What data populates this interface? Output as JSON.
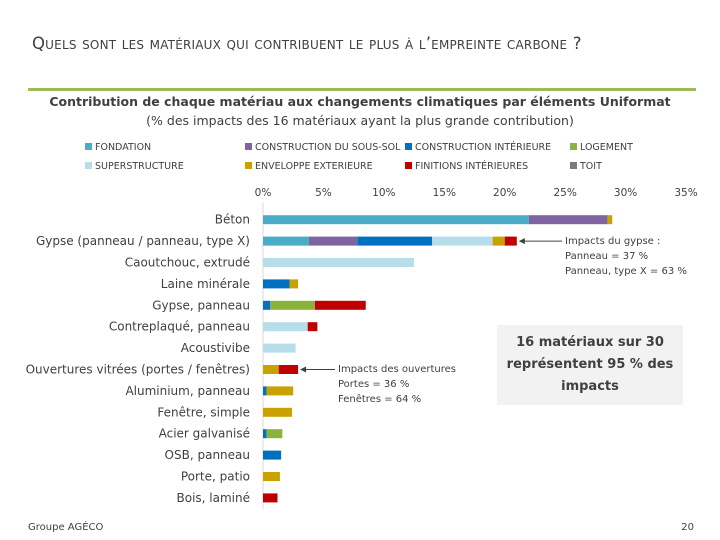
{
  "slide": {
    "title": "Quels sont les matériaux qui contribuent le plus à l’empreinte carbone ?",
    "footer_left": "Groupe AGÉCO",
    "page_number": "20"
  },
  "annotations": {
    "gypse_lines": [
      "Impacts du gypse :",
      "Panneau = 37 %",
      "Panneau, type X = 63 %"
    ],
    "ouvertures_lines": [
      "Impacts des ouvertures",
      "Portes = 36 %",
      "Fenêtres = 64 %"
    ],
    "callout": "16 matériaux sur 30 représentent 95 % des impacts"
  },
  "chart_data": {
    "type": "bar",
    "orientation": "horizontal",
    "stacked": true,
    "title": "Contribution de chaque matériau aux changements climatiques par éléments Uniformat",
    "subtitle": "(% des impacts des 16 matériaux ayant la plus grande contribution)",
    "xlim": [
      0,
      35
    ],
    "xticks": [
      "0%",
      "5%",
      "10%",
      "15%",
      "20%",
      "25%",
      "30%",
      "35%"
    ],
    "xtick_values": [
      0,
      5,
      10,
      15,
      20,
      25,
      30,
      35
    ],
    "legend_position": "top",
    "categories": [
      "Béton",
      "Gypse (panneau / panneau, type X)",
      "Caoutchouc, extrudé",
      "Laine minérale",
      "Gypse, panneau",
      "Contreplaqué, panneau",
      "Acoustivibe",
      "Ouvertures vitrées (portes / fenêtres)",
      "Aluminium, panneau",
      "Fenêtre, simple",
      "Acier galvanisé",
      "OSB, panneau",
      "Porte, patio",
      "Bois, laminé"
    ],
    "series": [
      {
        "name": "FONDATION",
        "color": "#4bacc6",
        "values": [
          22.0,
          3.8,
          0,
          0,
          0,
          0,
          0,
          0,
          0,
          0,
          0,
          0,
          0,
          0
        ]
      },
      {
        "name": "CONSTRUCTION DU SOUS-SOL",
        "color": "#8064a2",
        "values": [
          6.5,
          4.0,
          0,
          0,
          0,
          0,
          0,
          0,
          0,
          0,
          0,
          0,
          0,
          0
        ]
      },
      {
        "name": "CONSTRUCTION INTÉRIEURE",
        "color": "#0070c0",
        "values": [
          0,
          6.2,
          0,
          2.2,
          0.6,
          0,
          0,
          0,
          0.3,
          0,
          0.3,
          1.5,
          0,
          0
        ]
      },
      {
        "name": "LOGEMENT",
        "color": "#8ab23c",
        "values": [
          0,
          0,
          0,
          0,
          3.7,
          0,
          0,
          0,
          0,
          0,
          1.3,
          0,
          0,
          0
        ]
      },
      {
        "name": "SUPERSTRUCTURE",
        "color": "#b7dee8",
        "values": [
          0,
          5.0,
          12.5,
          0,
          0,
          3.7,
          2.7,
          0,
          0,
          0,
          0,
          0,
          0,
          0
        ]
      },
      {
        "name": "ENVELOPPE EXTERIEURE",
        "color": "#c9a100",
        "values": [
          0.4,
          1.0,
          0,
          0.7,
          0,
          0,
          0,
          1.3,
          2.2,
          2.4,
          0,
          0,
          1.4,
          0
        ]
      },
      {
        "name": "FINITIONS INTÉRIEURES",
        "color": "#c00000",
        "values": [
          0,
          1.0,
          0,
          0,
          4.2,
          0.8,
          0,
          1.6,
          0,
          0,
          0,
          0,
          0,
          1.2
        ]
      },
      {
        "name": "TOIT",
        "color": "#7a7a7a",
        "values": [
          0,
          0,
          0,
          0,
          0,
          0,
          0,
          0,
          0,
          0,
          0,
          0,
          0,
          0
        ]
      }
    ]
  }
}
